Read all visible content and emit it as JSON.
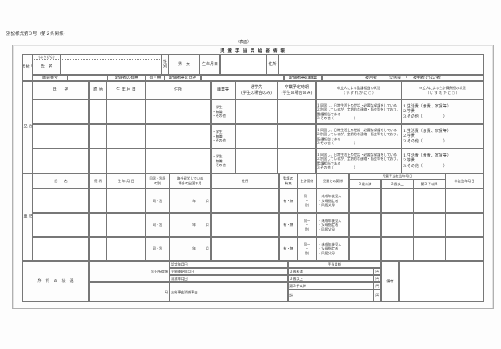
{
  "form_number": "別記様式第３号（第２条関係）",
  "side_label": "（表面）",
  "title": "児 童 手 当 受 給 者 情 報",
  "recipient": {
    "label": "受\n給\n者",
    "furigana_label": "(ふりがな)",
    "name_label": "氏　名",
    "sex_label": "性別",
    "sex_options": "男・女",
    "dob_label": "生年月日",
    "address_label": "住所",
    "staff_no_label": "職員番号",
    "spouse_label": "配偶者の有無",
    "spouse_options": "有・無",
    "spouse_name_label": "配偶者等の氏名",
    "spouse_job_label": "配偶者等の職業",
    "spouse_job_options": "被用者　・　公務員　・　被用者でない者"
  },
  "siblings": {
    "label": "児\n童\nの\n兄\n姉\n等",
    "headers": {
      "name": "氏　　名",
      "relation": "続 柄",
      "dob": "生 年 月 日",
      "address": "住所",
      "occupation": "職業等",
      "school": "通学先\n(学生の場合のみ)",
      "graduation": "卒業予定時期\n(学生の場合のみ)",
      "custody": "申立人による監護相当の状況\n（ い ず れ か に ○ ）",
      "livelihood": "申立人による生計費負担の状況\n（ い ず れ か に ○ ）"
    },
    "occupation_options": "・学生\n・無職\n・その他",
    "custody_options": "1.同居し、日常生活上の世話・必要な保護をしている\n2.別居しているが、定期的な連絡・面会等をしており、監護相当である\n3.その他（　　　　　　）",
    "livelihood_options": "1.生活費（食費、家賃等）\n2.学費\n3.その他（　　　　　）"
  },
  "children": {
    "label": "児\n童",
    "headers": {
      "name": "氏　　名",
      "relation": "続 柄",
      "dob": "生 年 月 日",
      "cohabit": "同居・別居\nの別",
      "abroad": "海外留学している\n場合の出国年月",
      "address": "住所",
      "custody": "監護の\n有無",
      "livelihood": "生計関係",
      "child_relation": "児童との関係",
      "eligible": "児童手当該当年月日",
      "under3": "３歳未満",
      "over3": "３歳以上",
      "third": "第３子以降",
      "ineligible": "非該当年月日"
    },
    "cohabit_options": "同・別",
    "abroad_value": "年　　　月",
    "custody_options": "有・無",
    "livelihood_options": "同一\n・\n別",
    "relation_options": "・未成年後見人\n・父母指定者\n・同居父母"
  },
  "income": {
    "label": "所　得　の　状　況",
    "annual_income_label": "年分所得額",
    "yen": "円",
    "certified_date": "認定年月日",
    "start_date": "支給開始年月日",
    "end_date": "消滅年月日",
    "reason": "支給事由消滅事由",
    "monthly_label": "手当月額",
    "under3": "３歳未満",
    "over3": "３歳以上",
    "third": "第３子以降",
    "total": "計",
    "remarks_label": "備考"
  }
}
